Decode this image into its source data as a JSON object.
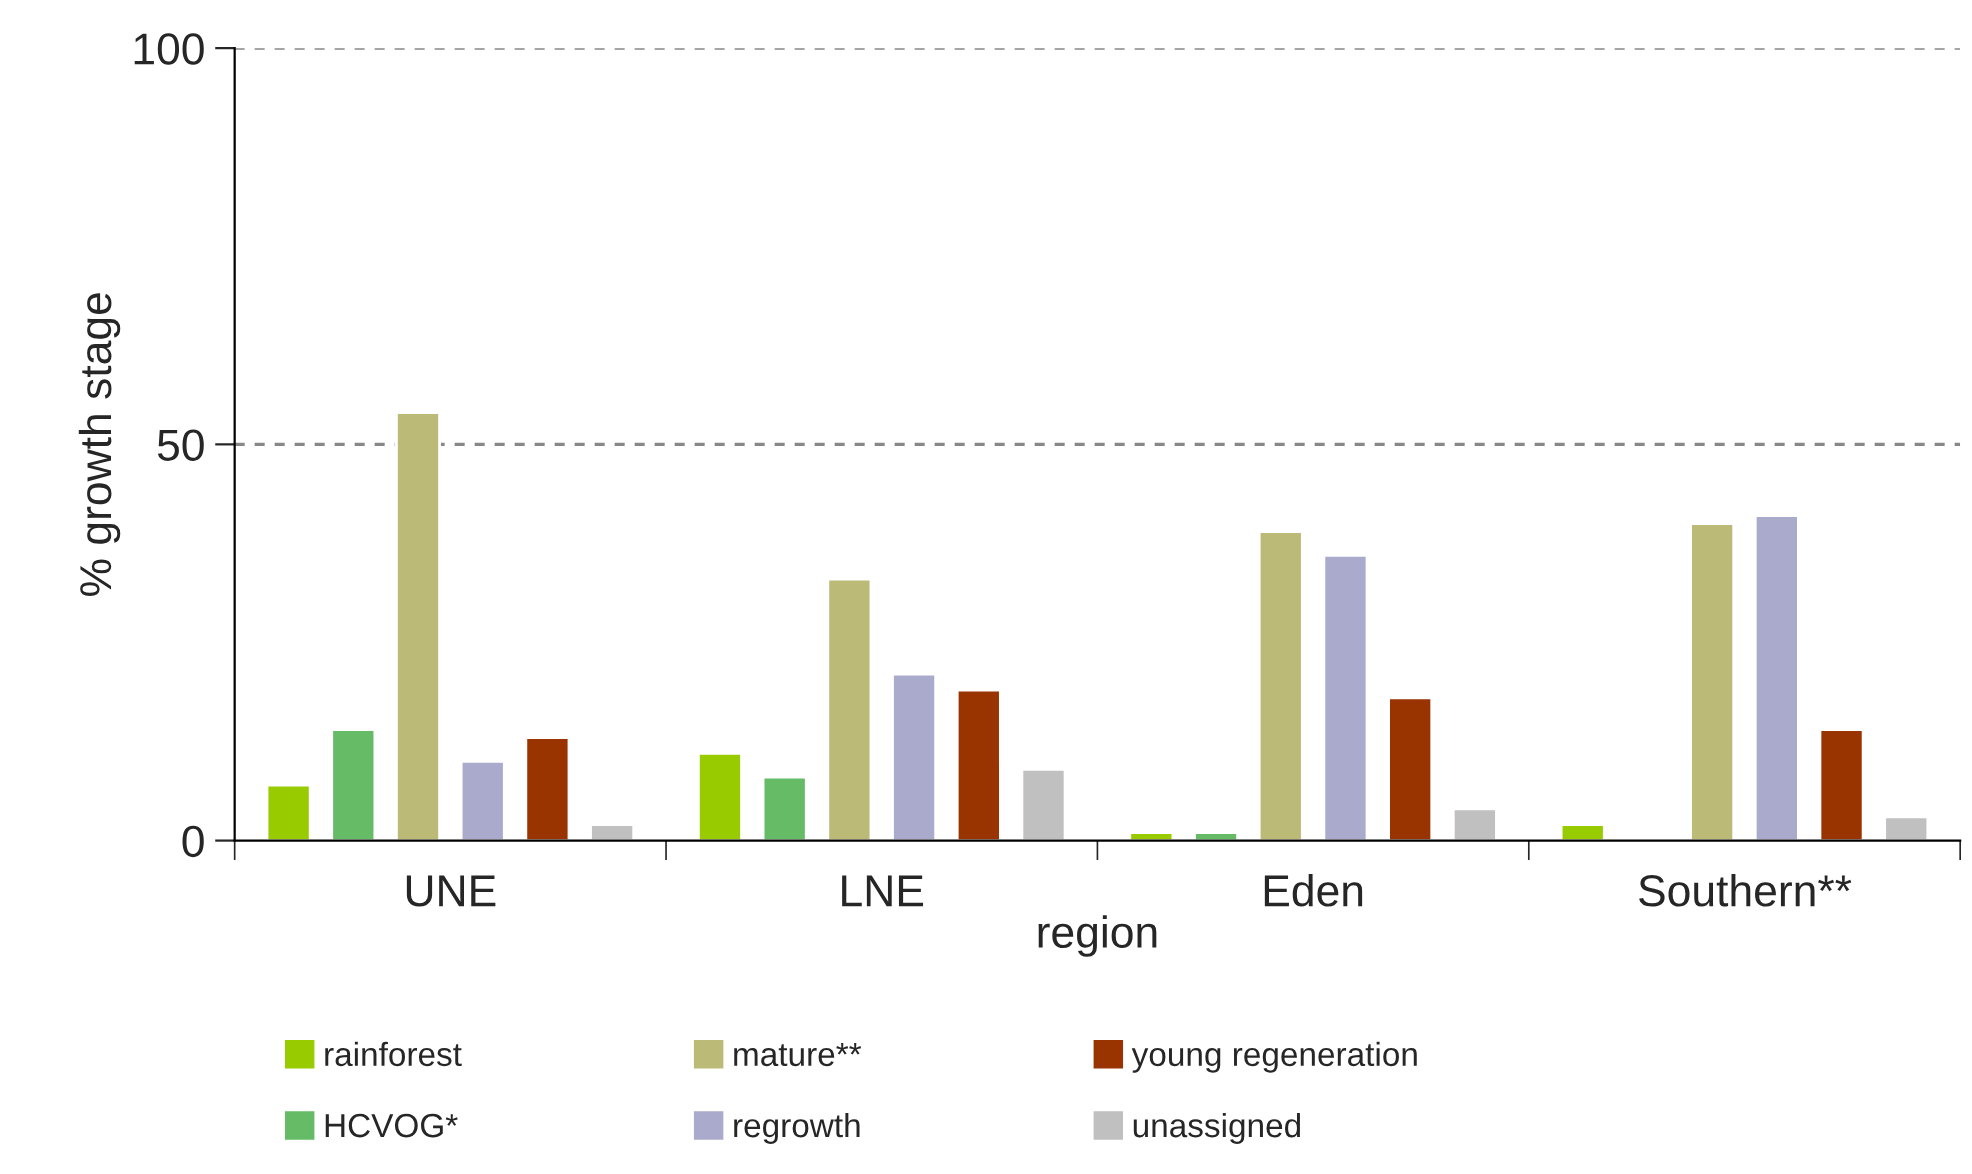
{
  "chart_data": {
    "type": "bar",
    "xlabel": "region",
    "ylabel": "% growth stage",
    "categories": [
      "UNE",
      "LNE",
      "Eden",
      "Southern**"
    ],
    "series": [
      {
        "name": "rainforest",
        "color": "#99cc00",
        "values": [
          7,
          11,
          1,
          2
        ]
      },
      {
        "name": "HCVOG*",
        "color": "#66bb66",
        "values": [
          14,
          8,
          1,
          null
        ]
      },
      {
        "name": "mature**",
        "color": "#bbbb77",
        "values": [
          54,
          33,
          39,
          40
        ]
      },
      {
        "name": "regrowth",
        "color": "#aaaacc",
        "values": [
          10,
          21,
          36,
          41
        ]
      },
      {
        "name": "young regeneration",
        "color": "#993300",
        "values": [
          13,
          19,
          18,
          14
        ]
      },
      {
        "name": "unassigned",
        "color": "#c0c0c0",
        "values": [
          2,
          9,
          4,
          3
        ]
      }
    ],
    "ylim": [
      0,
      100
    ],
    "yticks": [
      0,
      50,
      100
    ],
    "grid": "y",
    "legend": "bottom"
  }
}
